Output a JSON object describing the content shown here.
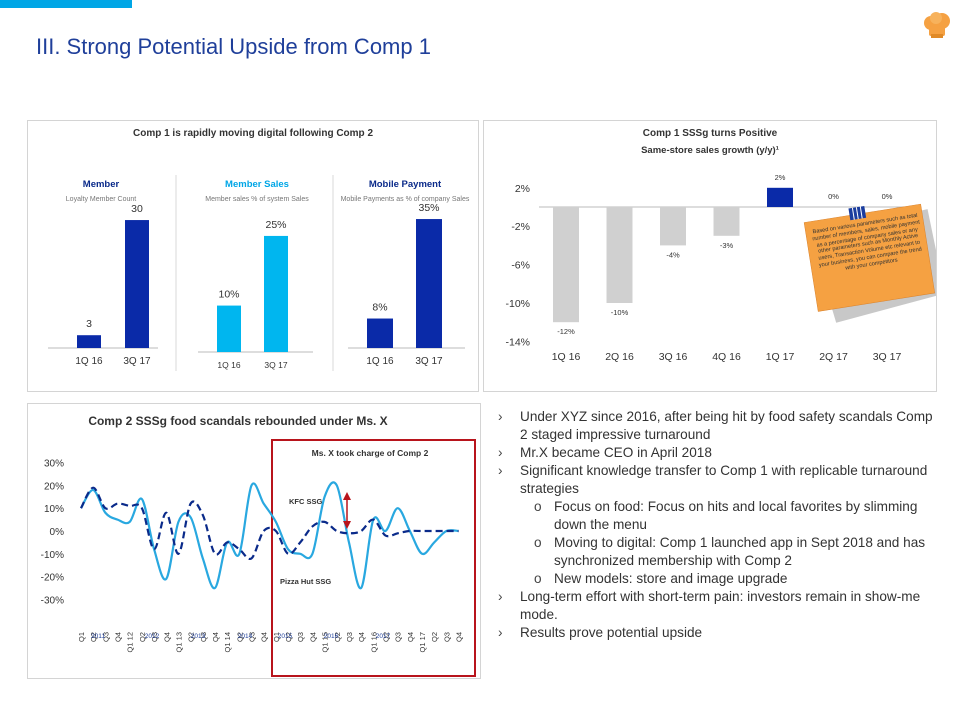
{
  "page": {
    "title": "III. Strong Potential Upside from Comp 1"
  },
  "colors": {
    "accent": "#00a6e6",
    "dark_bar": "#0a2aa8",
    "light_bar": "#00b6ef",
    "grey_bar": "#d0d0d0",
    "highlight_box": "#b8141c",
    "note_fill": "#f5a142"
  },
  "icons": {
    "logo": "chef-hat-icon",
    "note": "chart-sticky-note-icon"
  },
  "panel1": {
    "title": "Comp 1 is rapidly moving digital following Comp 2",
    "sections": [
      {
        "name": "Member",
        "subtitle": "Loyalty Member Count"
      },
      {
        "name": "Member Sales",
        "subtitle": "Member sales % of system Sales"
      },
      {
        "name": "Mobile Payment",
        "subtitle": "Mobile Payments as % of company Sales"
      }
    ]
  },
  "panel2": {
    "title": "Comp 1 SSSg turns Positive",
    "subtitle": "Same-store sales growth (y/y)¹",
    "note": "Based on various parameters such as total number of members, sales, mobile payment as a percentage of company sales or any other parameters such as Monthly Active users, Transaction Volume etc relevant to your business, you can compare the trend with your competitors"
  },
  "panel3": {
    "title": "Comp 2 SSSg food scandals rebounded under Ms. X",
    "annotation": "Ms. X took charge of Comp 2",
    "kfc_label": "KFC SSG",
    "ph_label": "Pizza Hut SSG"
  },
  "bullets": [
    {
      "level": 1,
      "marker": "›",
      "text": "Under XYZ since 2016, after being hit by food safety scandals Comp 2 staged impressive turnaround"
    },
    {
      "level": 1,
      "marker": "›",
      "text": "Mr.X became CEO in April 2018"
    },
    {
      "level": 1,
      "marker": "›",
      "text": "Significant knowledge transfer to Comp 1 with replicable turnaround strategies"
    },
    {
      "level": 2,
      "marker": "o",
      "text": "Focus on food: Focus on hits and local favorites by slimming down the menu"
    },
    {
      "level": 2,
      "marker": "o",
      "text": "Moving to digital: Comp 1 launched app in Sept 2018 and has synchronized membership with Comp 2"
    },
    {
      "level": 2,
      "marker": "o",
      "text": "New models: store and image upgrade"
    },
    {
      "level": 1,
      "marker": "›",
      "text": "Long-term effort with short-term pain: investors remain in show-me mode."
    },
    {
      "level": 1,
      "marker": "›",
      "text": "Results prove potential upside"
    }
  ],
  "chart_data": [
    {
      "type": "bar",
      "title": "Member",
      "categories": [
        "1Q 16",
        "3Q 17"
      ],
      "values": [
        3,
        30
      ],
      "labels": [
        "3",
        "30"
      ],
      "color": "#0a2aa8",
      "ylim": [
        0,
        34
      ]
    },
    {
      "type": "bar",
      "title": "Member Sales",
      "categories": [
        "1Q 16",
        "3Q 17"
      ],
      "values": [
        10,
        25
      ],
      "labels": [
        "10%",
        "25%"
      ],
      "color": "#00b6ef",
      "ylim": [
        0,
        28
      ]
    },
    {
      "type": "bar",
      "title": "Mobile Payment",
      "categories": [
        "1Q 16",
        "3Q 17"
      ],
      "values": [
        8,
        35
      ],
      "labels": [
        "8%",
        "35%"
      ],
      "color": "#0a2aa8",
      "ylim": [
        0,
        38
      ]
    },
    {
      "type": "bar",
      "title": "Same-store sales growth (y/y)",
      "categories": [
        "1Q 16",
        "2Q 16",
        "3Q 16",
        "4Q 16",
        "1Q 17",
        "2Q 17",
        "3Q 17"
      ],
      "values": [
        -12,
        -10,
        -4,
        -3,
        2,
        0,
        0
      ],
      "labels": [
        "-12%",
        "-10%",
        "-4%",
        "-3%",
        "2%",
        "0%",
        "0%"
      ],
      "highlight_index": 4,
      "yticks": [
        "2%",
        "-2%",
        "-6%",
        "-10%",
        "-14%"
      ],
      "ytick_values": [
        2,
        -2,
        -6,
        -10,
        -14
      ],
      "ylim": [
        -14,
        2
      ]
    },
    {
      "type": "line",
      "title": "Comp 2 SSSg food scandals rebounded under Ms. X",
      "x": [
        "Q1",
        "Q2",
        "Q3",
        "Q4",
        "Q1 12",
        "Q2",
        "Q3",
        "Q4",
        "Q1 13",
        "Q2",
        "Q3",
        "Q4",
        "Q1 14",
        "Q2",
        "Q3",
        "Q4",
        "Q1",
        "Q2",
        "Q3",
        "Q4",
        "Q1 15",
        "Q2",
        "Q3",
        "Q4",
        "Q1 16",
        "Q2",
        "Q3",
        "Q4",
        "Q1 17",
        "Q2",
        "Q3",
        "Q4"
      ],
      "years": [
        "2011",
        "2012",
        "2013",
        "2014",
        "2015",
        "2016",
        "2017"
      ],
      "yticks": [
        "30%",
        "20%",
        "10%",
        "0%",
        "-10%",
        "-20%",
        "-30%"
      ],
      "ytick_values": [
        30,
        20,
        10,
        0,
        -10,
        -20,
        -30
      ],
      "ylim": [
        -30,
        30
      ],
      "series": [
        {
          "name": "KFC SSG",
          "style": "solid",
          "color": "#29a8e0",
          "values": [
            10,
            18,
            8,
            5,
            4,
            14,
            -8,
            -21,
            4,
            6,
            -12,
            -25,
            -5,
            -10,
            20,
            12,
            4,
            -8,
            -10,
            -10,
            15,
            20,
            -5,
            -25,
            5,
            0,
            10,
            0,
            -10,
            -5,
            0,
            0
          ]
        },
        {
          "name": "Pizza Hut SSG",
          "style": "dashed",
          "color": "#0a2a8a",
          "values": [
            10,
            19,
            10,
            12,
            11,
            10,
            -8,
            8,
            -10,
            12,
            7,
            -10,
            -5,
            -8,
            -12,
            0,
            0,
            -10,
            -5,
            2,
            4,
            0,
            -1,
            0,
            5,
            -2,
            -1,
            0,
            0,
            0,
            0,
            0
          ]
        }
      ]
    }
  ]
}
